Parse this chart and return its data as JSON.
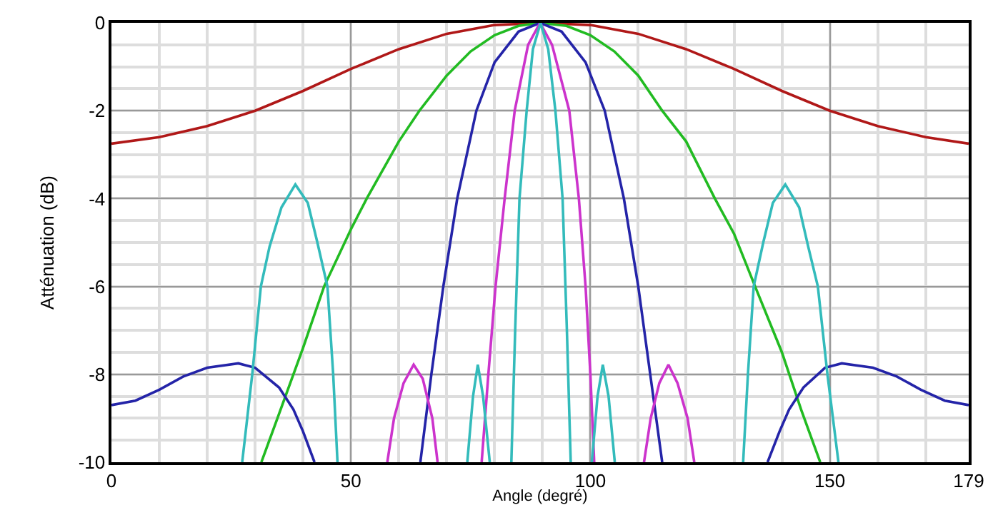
{
  "chart_data": {
    "type": "line",
    "xlabel": "Angle (degré)",
    "ylabel": "Atténuation (dB)",
    "xlim": [
      0,
      179
    ],
    "xticks": [
      0,
      50,
      100,
      150,
      179
    ],
    "ylim": [
      -10,
      0
    ],
    "yticks": [
      -10,
      -8,
      -6,
      -4,
      -2,
      0
    ],
    "grid": true,
    "marker": "none",
    "line_style": "solid",
    "series": [
      {
        "color": "#b01818",
        "x": [
          0,
          10,
          20,
          30,
          40,
          50,
          60,
          70,
          80,
          90,
          100,
          110,
          120,
          130,
          140,
          150,
          160,
          170,
          179
        ],
        "values": [
          -2.75,
          -2.6,
          -2.35,
          -2.0,
          -1.55,
          -1.05,
          -0.6,
          -0.25,
          -0.05,
          0,
          -0.05,
          -0.25,
          -0.6,
          -1.05,
          -1.55,
          -2.0,
          -2.35,
          -2.6,
          -2.75
        ]
      },
      {
        "color": "#22bb22",
        "x": [
          31.3,
          35,
          40,
          44.4,
          50,
          53.3,
          60,
          64.3,
          70,
          75,
          80,
          85,
          89.5,
          95,
          100,
          105,
          110,
          115,
          120,
          126,
          130,
          134.4,
          140,
          144,
          148
        ],
        "values": [
          -10,
          -8.9,
          -7.4,
          -6,
          -4.7,
          -4,
          -2.7,
          -2,
          -1.2,
          -0.65,
          -0.28,
          -0.07,
          0,
          -0.07,
          -0.28,
          -0.65,
          -1.2,
          -2,
          -2.7,
          -4,
          -4.8,
          -6,
          -7.5,
          -8.8,
          -10
        ]
      },
      {
        "color": "#2424a8",
        "x": [
          0,
          5,
          10,
          15,
          20,
          26.5,
          30,
          35,
          38,
          40,
          42.4,
          53,
          64.5,
          66.8,
          69.3,
          72.2,
          76.2,
          80,
          85,
          89.5,
          94,
          99,
          103,
          107,
          110,
          112.5,
          115,
          126,
          137,
          139.5,
          141.5,
          144.5,
          149,
          152.5,
          159,
          164,
          169,
          174,
          179
        ],
        "values": [
          -8.7,
          -8.6,
          -8.35,
          -8.05,
          -7.85,
          -7.75,
          -7.85,
          -8.3,
          -8.8,
          -9.3,
          -10,
          null,
          -10,
          -8,
          -6,
          -4,
          -2,
          -0.9,
          -0.2,
          0,
          -0.2,
          -0.9,
          -2,
          -4,
          -6,
          -8,
          -10,
          null,
          -10,
          -9.3,
          -8.8,
          -8.3,
          -7.85,
          -7.75,
          -7.85,
          -8.05,
          -8.35,
          -8.6,
          -8.7
        ]
      },
      {
        "color": "#cc33cc",
        "x": [
          57.6,
          59,
          61,
          63.1,
          65,
          67,
          68.1,
          72,
          77.3,
          78.7,
          80.2,
          82.1,
          84.2,
          87,
          89.5,
          92,
          95.6,
          97.6,
          99,
          100,
          100.8,
          106,
          111.2,
          112.6,
          114.4,
          116.3,
          118.2,
          120.3,
          121.7
        ],
        "values": [
          -10,
          -9,
          -8.2,
          -7.78,
          -8.1,
          -9,
          -10,
          null,
          -10,
          -8,
          -6,
          -4,
          -2,
          -0.5,
          0,
          -0.5,
          -2,
          -4,
          -6,
          -8,
          -10,
          null,
          -10,
          -9,
          -8.2,
          -7.78,
          -8.2,
          -9,
          -10
        ]
      },
      {
        "color": "#33bbbb",
        "x": [
          27.3,
          29.4,
          31.2,
          33,
          35.5,
          38.4,
          41,
          43,
          45.1,
          46.3,
          47.2,
          60,
          74.3,
          75.5,
          76.5,
          77.6,
          79,
          81,
          83.5,
          84.3,
          85.2,
          86.7,
          88,
          89.6,
          91.2,
          92.7,
          94.2,
          95.1,
          95.9,
          98,
          100.3,
          101.5,
          102.6,
          103.8,
          105.1,
          118,
          131.9,
          132.9,
          134.1,
          136.1,
          138.1,
          140.7,
          143.6,
          145.5,
          147.5,
          149.5,
          151.8
        ],
        "values": [
          -10,
          -8,
          -6,
          -5.1,
          -4.2,
          -3.68,
          -4.1,
          -5,
          -6,
          -8,
          -10,
          null,
          -10,
          -8.5,
          -7.78,
          -8.5,
          -10,
          null,
          -10,
          -7,
          -4,
          -2,
          -0.6,
          0,
          -0.6,
          -2,
          -4,
          -7,
          -10,
          null,
          -10,
          -8.5,
          -7.78,
          -8.5,
          -10,
          null,
          -10,
          -8,
          -6,
          -5,
          -4.1,
          -3.68,
          -4.2,
          -5.1,
          -6,
          -8,
          -10
        ]
      }
    ]
  }
}
